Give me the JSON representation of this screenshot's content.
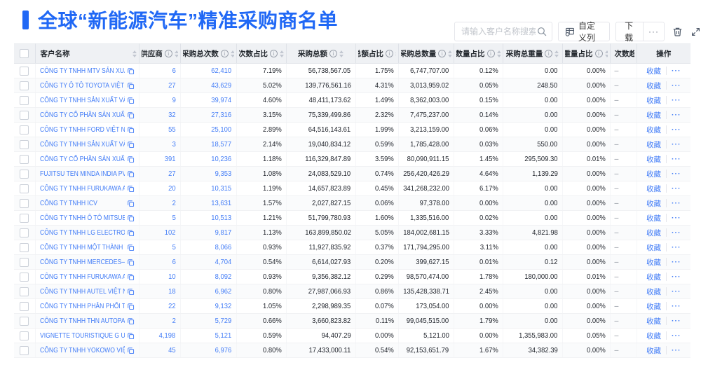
{
  "page": {
    "title": "全球“新能源汽车”精准采购商名单",
    "search_placeholder": "请输入客户名称搜索",
    "customize_columns_label": "自定义列",
    "download_label": "下载",
    "download_more_label": "···"
  },
  "colors": {
    "accent_blue": "#2068f5",
    "link_blue": "#437df7",
    "header_bg": "#eff1f4",
    "stripe_bg": "#fafbfc"
  },
  "table": {
    "favorite_label": "收藏",
    "more_label": "···",
    "columns": [
      {
        "key": "checkbox",
        "label": ""
      },
      {
        "key": "name",
        "label": "客户名称",
        "sort": true
      },
      {
        "key": "supplier",
        "label": "供应商",
        "info": true,
        "sort": true
      },
      {
        "key": "count",
        "label": "采购总次数",
        "info": true,
        "sort": true
      },
      {
        "key": "count_pct",
        "label": "次数占比",
        "info": true,
        "sort": true
      },
      {
        "key": "amount",
        "label": "采购总额",
        "info": true,
        "sort": true
      },
      {
        "key": "amount_pct",
        "label": "总额占比",
        "info": true,
        "sort": true
      },
      {
        "key": "qty",
        "label": "采购总数量",
        "info": true,
        "sort": true
      },
      {
        "key": "qty_pct",
        "label": "数量占比",
        "info": true,
        "sort": true
      },
      {
        "key": "weight",
        "label": "采购总重量",
        "info": true,
        "sort": true
      },
      {
        "key": "weight_pct",
        "label": "重量占比",
        "info": true,
        "sort": true
      },
      {
        "key": "trend",
        "label": "次数趋势"
      },
      {
        "key": "ops",
        "label": "操作"
      }
    ],
    "rows": [
      {
        "name": "CÔNG TY TNHH MTV SẢN XUẤ...",
        "supplier": "6",
        "count": "62,410",
        "count_pct": "7.19%",
        "amount": "56,738,567.05",
        "amount_pct": "1.75%",
        "qty": "6,747,707.00",
        "qty_pct": "0.12%",
        "weight": "0.00",
        "weight_pct": "0.00%",
        "trend": "–"
      },
      {
        "name": "CÔNG TY Ô TÔ TOYOTA VIỆT ...",
        "supplier": "27",
        "count": "43,629",
        "count_pct": "5.02%",
        "amount": "139,776,561.16",
        "amount_pct": "4.31%",
        "qty": "3,013,959.02",
        "qty_pct": "0.05%",
        "weight": "248.50",
        "weight_pct": "0.00%",
        "trend": "–"
      },
      {
        "name": "CÔNG TY TNHH SẢN XUẤT VÀ ...",
        "supplier": "9",
        "count": "39,974",
        "count_pct": "4.60%",
        "amount": "48,411,173.62",
        "amount_pct": "1.49%",
        "qty": "8,362,003.00",
        "qty_pct": "0.15%",
        "weight": "0.00",
        "weight_pct": "0.00%",
        "trend": "–"
      },
      {
        "name": "CÔNG TY CỔ PHẦN SẢN XUẤT...",
        "supplier": "32",
        "count": "27,316",
        "count_pct": "3.15%",
        "amount": "75,339,499.86",
        "amount_pct": "2.32%",
        "qty": "7,475,237.00",
        "qty_pct": "0.14%",
        "weight": "0.00",
        "weight_pct": "0.00%",
        "trend": "–"
      },
      {
        "name": "CÔNG TY TNHH FORD VIỆT NAM",
        "supplier": "55",
        "count": "25,100",
        "count_pct": "2.89%",
        "amount": "64,516,143.61",
        "amount_pct": "1.99%",
        "qty": "3,213,159.00",
        "qty_pct": "0.06%",
        "weight": "0.00",
        "weight_pct": "0.00%",
        "trend": "–"
      },
      {
        "name": "CÔNG TY TNHH SẢN XUẤT VÀ ...",
        "supplier": "3",
        "count": "18,577",
        "count_pct": "2.14%",
        "amount": "19,040,834.12",
        "amount_pct": "0.59%",
        "qty": "1,785,428.00",
        "qty_pct": "0.03%",
        "weight": "550.00",
        "weight_pct": "0.00%",
        "trend": "–"
      },
      {
        "name": "CÔNG TY CỔ PHẦN SẢN XUẤT...",
        "supplier": "391",
        "count": "10,236",
        "count_pct": "1.18%",
        "amount": "116,329,847.89",
        "amount_pct": "3.59%",
        "qty": "80,090,911.15",
        "qty_pct": "1.45%",
        "weight": "295,509.30",
        "weight_pct": "0.01%",
        "trend": "–"
      },
      {
        "name": "FUJITSU TEN MINDA INDIA PVT...",
        "supplier": "27",
        "count": "9,353",
        "count_pct": "1.08%",
        "amount": "24,083,529.10",
        "amount_pct": "0.74%",
        "qty": "256,420,426.29",
        "qty_pct": "4.64%",
        "weight": "1,139.29",
        "weight_pct": "0.00%",
        "trend": "–"
      },
      {
        "name": "CÔNG TY TNHH FURUKAWA A...",
        "supplier": "20",
        "count": "10,315",
        "count_pct": "1.19%",
        "amount": "14,657,823.89",
        "amount_pct": "0.45%",
        "qty": "341,268,232.00",
        "qty_pct": "6.17%",
        "weight": "0.00",
        "weight_pct": "0.00%",
        "trend": "–"
      },
      {
        "name": "CÔNG TY TNHH ICV",
        "supplier": "2",
        "count": "13,631",
        "count_pct": "1.57%",
        "amount": "2,027,827.15",
        "amount_pct": "0.06%",
        "qty": "97,378.00",
        "qty_pct": "0.00%",
        "weight": "0.00",
        "weight_pct": "0.00%",
        "trend": "–"
      },
      {
        "name": "CÔNG TY TNHH Ô TÔ MITSUBI...",
        "supplier": "5",
        "count": "10,513",
        "count_pct": "1.21%",
        "amount": "51,799,780.93",
        "amount_pct": "1.60%",
        "qty": "1,335,516.00",
        "qty_pct": "0.02%",
        "weight": "0.00",
        "weight_pct": "0.00%",
        "trend": "–"
      },
      {
        "name": "CÔNG TY TNHH LG ELECTRON...",
        "supplier": "102",
        "count": "9,817",
        "count_pct": "1.13%",
        "amount": "163,899,850.02",
        "amount_pct": "5.05%",
        "qty": "184,002,681.15",
        "qty_pct": "3.33%",
        "weight": "4,821.98",
        "weight_pct": "0.00%",
        "trend": "–"
      },
      {
        "name": "CÔNG TY TNHH MỘT THÀNH V...",
        "supplier": "5",
        "count": "8,066",
        "count_pct": "0.93%",
        "amount": "11,927,835.92",
        "amount_pct": "0.37%",
        "qty": "171,794,295.00",
        "qty_pct": "3.11%",
        "weight": "0.00",
        "weight_pct": "0.00%",
        "trend": "–"
      },
      {
        "name": "CÔNG TY TNHH MERCEDES–B...",
        "supplier": "6",
        "count": "4,704",
        "count_pct": "0.54%",
        "amount": "6,614,027.93",
        "amount_pct": "0.20%",
        "qty": "399,627.15",
        "qty_pct": "0.01%",
        "weight": "0.12",
        "weight_pct": "0.00%",
        "trend": "–"
      },
      {
        "name": "CÔNG TY TNHH FURUKAWA A...",
        "supplier": "10",
        "count": "8,092",
        "count_pct": "0.93%",
        "amount": "9,356,382.12",
        "amount_pct": "0.29%",
        "qty": "98,570,474.00",
        "qty_pct": "1.78%",
        "weight": "180,000.00",
        "weight_pct": "0.01%",
        "trend": "–"
      },
      {
        "name": "CÔNG TY TNHH AUTEL VIỆT N...",
        "supplier": "18",
        "count": "6,962",
        "count_pct": "0.80%",
        "amount": "27,987,066.93",
        "amount_pct": "0.86%",
        "qty": "135,428,338.71",
        "qty_pct": "2.45%",
        "weight": "0.00",
        "weight_pct": "0.00%",
        "trend": "–"
      },
      {
        "name": "CÔNG TY TNHH PHÂN PHỐI T...",
        "supplier": "22",
        "count": "9,132",
        "count_pct": "1.05%",
        "amount": "2,298,989.35",
        "amount_pct": "0.07%",
        "qty": "173,054.00",
        "qty_pct": "0.00%",
        "weight": "0.00",
        "weight_pct": "0.00%",
        "trend": "–"
      },
      {
        "name": "CÔNG TY TNHH THN AUTOPAR...",
        "supplier": "2",
        "count": "5,729",
        "count_pct": "0.66%",
        "amount": "3,660,823.82",
        "amount_pct": "0.11%",
        "qty": "99,045,515.00",
        "qty_pct": "1.79%",
        "weight": "0.00",
        "weight_pct": "0.00%",
        "trend": "–"
      },
      {
        "name": "VIGNETTE TOURISTIQUE G UNI...",
        "supplier": "4,198",
        "count": "5,121",
        "count_pct": "0.59%",
        "amount": "94,407.29",
        "amount_pct": "0.00%",
        "qty": "5,121.00",
        "qty_pct": "0.00%",
        "weight": "1,355,983.00",
        "weight_pct": "0.05%",
        "trend": "–"
      },
      {
        "name": "CÔNG TY TNHH YOKOWO VIỆT...",
        "supplier": "45",
        "count": "6,976",
        "count_pct": "0.80%",
        "amount": "17,433,000.11",
        "amount_pct": "0.54%",
        "qty": "92,153,651.79",
        "qty_pct": "1.67%",
        "weight": "34,382.39",
        "weight_pct": "0.00%",
        "trend": "–"
      }
    ]
  }
}
